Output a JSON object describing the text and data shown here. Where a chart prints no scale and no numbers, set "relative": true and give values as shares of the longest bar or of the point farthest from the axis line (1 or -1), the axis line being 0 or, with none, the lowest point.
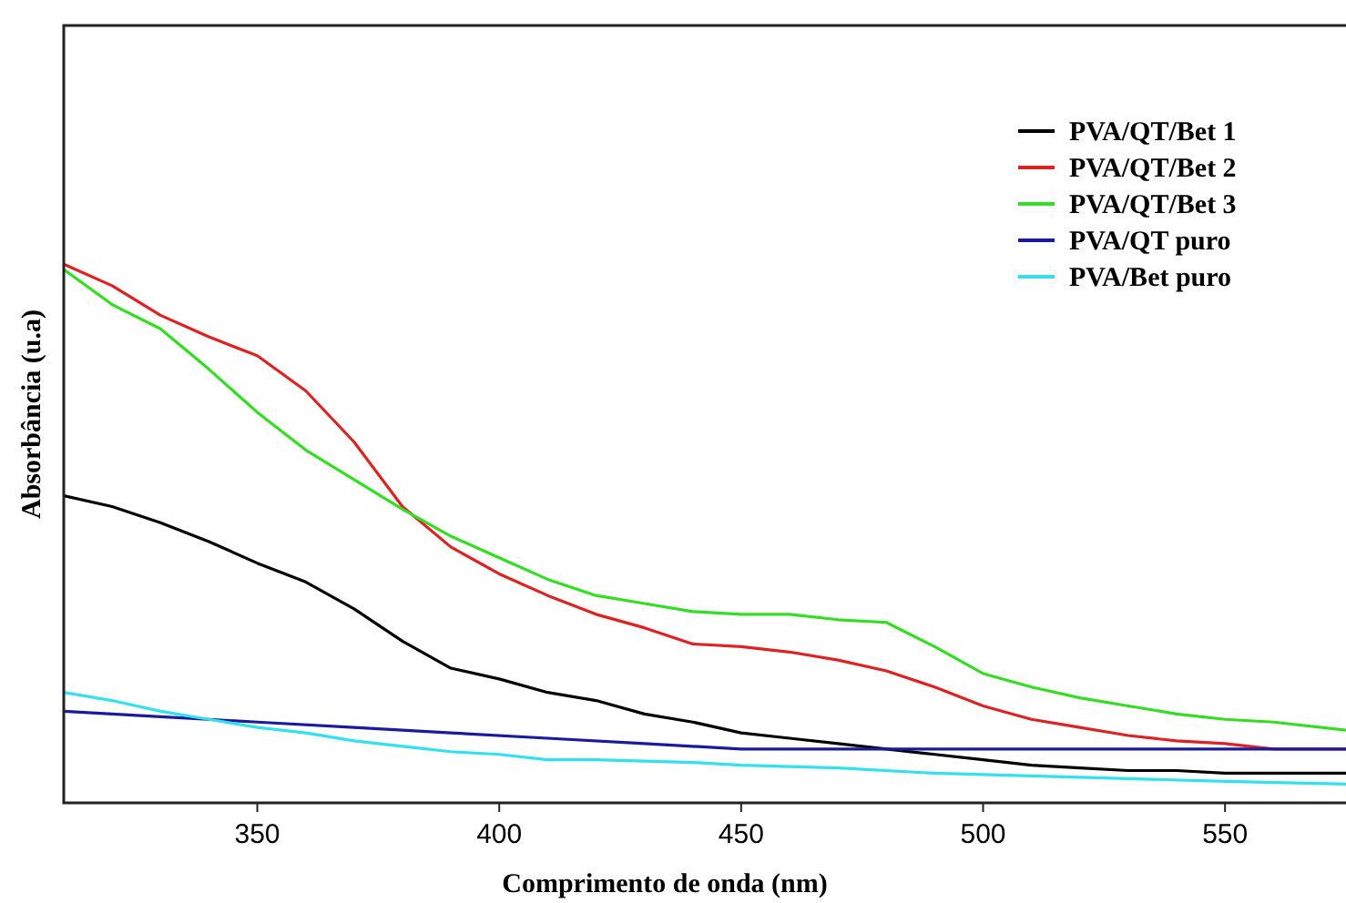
{
  "chart_data": {
    "type": "line",
    "xlabel": "Comprimento de onda (nm)",
    "ylabel": "Absorbância (u.a)",
    "relative": true,
    "xlim": [
      310,
      575
    ],
    "xticks": [
      350,
      400,
      450,
      500,
      550
    ],
    "legend": "top right",
    "grid": false,
    "x": [
      310,
      320,
      330,
      340,
      350,
      360,
      370,
      380,
      390,
      400,
      410,
      420,
      430,
      440,
      450,
      460,
      470,
      480,
      490,
      500,
      510,
      520,
      530,
      540,
      550,
      560,
      575
    ],
    "series": [
      {
        "name": "PVA/QT/Bet 1",
        "color": "#000000",
        "values": [
          0.57,
          0.55,
          0.52,
          0.485,
          0.445,
          0.41,
          0.36,
          0.3,
          0.25,
          0.23,
          0.205,
          0.19,
          0.165,
          0.15,
          0.13,
          0.12,
          0.11,
          0.1,
          0.09,
          0.08,
          0.07,
          0.065,
          0.06,
          0.06,
          0.055,
          0.055,
          0.055
        ]
      },
      {
        "name": "PVA/QT/Bet 2",
        "color": "#dd2222",
        "values": [
          1,
          0.96,
          0.905,
          0.865,
          0.83,
          0.765,
          0.67,
          0.55,
          0.475,
          0.425,
          0.385,
          0.35,
          0.325,
          0.295,
          0.29,
          0.28,
          0.265,
          0.245,
          0.215,
          0.18,
          0.155,
          0.14,
          0.125,
          0.115,
          0.11,
          0.1,
          0.1
        ]
      },
      {
        "name": "PVA/QT/Bet 3",
        "color": "#33dd22",
        "values": [
          0.99,
          0.925,
          0.88,
          0.805,
          0.725,
          0.655,
          0.6,
          0.545,
          0.495,
          0.455,
          0.415,
          0.385,
          0.37,
          0.355,
          0.35,
          0.35,
          0.34,
          0.335,
          0.29,
          0.24,
          0.215,
          0.195,
          0.18,
          0.165,
          0.155,
          0.15,
          0.135
        ]
      },
      {
        "name": "PVA/QT puro",
        "color": "#1a1aa0",
        "x": [
          310,
          330,
          350,
          370,
          390,
          410,
          430,
          450,
          470,
          490,
          510,
          530,
          550,
          575
        ],
        "values": [
          0.17,
          0.16,
          0.15,
          0.14,
          0.13,
          0.12,
          0.11,
          0.1,
          0.1,
          0.1,
          0.1,
          0.1,
          0.1,
          0.1
        ]
      },
      {
        "name": "PVA/Bet puro",
        "color": "#33e0ee",
        "x": [
          310,
          320,
          330,
          340,
          350,
          360,
          370,
          380,
          390,
          400,
          410,
          420,
          440,
          450,
          470,
          490,
          510,
          530,
          550,
          575
        ],
        "values": [
          0.205,
          0.19,
          0.17,
          0.155,
          0.14,
          0.13,
          0.115,
          0.105,
          0.095,
          0.09,
          0.08,
          0.08,
          0.075,
          0.07,
          0.065,
          0.055,
          0.05,
          0.045,
          0.04,
          0.035
        ]
      }
    ]
  }
}
